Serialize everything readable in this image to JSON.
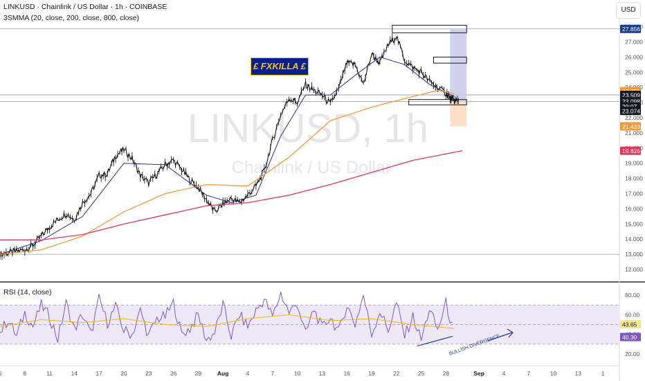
{
  "header": {
    "title": "LINKUSD · Chainlink / US Dollar · 1h · COINBASE",
    "indicator": "3SMMA (20, close, 200, close, 800, close)",
    "currency_button": "USD"
  },
  "watermark": {
    "line1": "LINKUSD, 1h",
    "line2": "Chainlink / US Dollar"
  },
  "badge": {
    "text": "£ FXKILLA £"
  },
  "rsi_panel": {
    "title": "RSI (14, close)"
  },
  "annotations": {
    "divergence": "BULLISH DIVERGENCE"
  },
  "colors": {
    "price": "#000000",
    "sma20": "#2a2e88",
    "sma200": "#f29a38",
    "sma800": "#e2365b",
    "rsi": "#7e57c2",
    "rsi_ma": "#f5b800",
    "rsi_band": "#ede7f6",
    "target_zone": "#c5cae9",
    "stop_zone": "#fcd9bd",
    "grid": "#d1d4dc"
  },
  "chart_data": [
    {
      "type": "candlestick",
      "symbol": "LINKUSD",
      "interval": "1h",
      "ylim": [
        11.5,
        28.3
      ],
      "yticks": [
        "12.000",
        "13.000",
        "14.000",
        "15.000",
        "16.000",
        "17.000",
        "18.000",
        "19.000",
        "20.000",
        "21.000",
        "22.000",
        "23.000",
        "24.000",
        "25.000",
        "26.000",
        "27.000",
        "28.000"
      ],
      "x_ticks": [
        "5",
        "8",
        "11",
        "14",
        "17",
        "20",
        "23",
        "26",
        "29",
        "Aug",
        "4",
        "7",
        "10",
        "13",
        "16",
        "19",
        "22",
        "25",
        "28",
        "Sep",
        "4",
        "7",
        "10",
        "13",
        "1"
      ],
      "x_tick_days": [
        5,
        8,
        11,
        14,
        17,
        20,
        23,
        26,
        29,
        32,
        35,
        38,
        41,
        44,
        47,
        50,
        53,
        56,
        59,
        63,
        66,
        69,
        72,
        75,
        78
      ],
      "x_range_days": [
        5,
        80
      ],
      "bold_x_ticks": [
        "Aug",
        "Sep"
      ],
      "price_series": {
        "day": [
          5,
          6,
          7,
          8,
          9,
          10,
          11,
          12,
          13,
          14,
          15,
          16,
          17,
          18,
          19,
          20,
          21,
          22,
          23,
          24,
          25,
          26,
          27,
          28,
          29,
          30,
          31,
          32,
          33,
          34,
          35,
          36,
          37,
          38,
          39,
          40,
          41,
          42,
          43,
          44,
          45,
          46,
          47,
          48,
          49,
          50,
          51,
          52,
          53,
          54,
          55,
          56,
          57,
          58,
          59,
          59.5,
          60,
          60.5
        ],
        "close": [
          13.0,
          13.1,
          13.2,
          13.3,
          13.6,
          14.2,
          14.8,
          15.3,
          15.7,
          15.3,
          16.4,
          17.0,
          18.2,
          18.3,
          19.5,
          19.9,
          19.3,
          18.2,
          17.7,
          18.3,
          18.9,
          19.2,
          18.6,
          17.9,
          17.4,
          16.6,
          15.8,
          16.3,
          16.7,
          16.4,
          16.9,
          17.5,
          18.5,
          20.5,
          22.2,
          23.3,
          23.0,
          24.2,
          23.8,
          23.5,
          22.9,
          23.9,
          25.6,
          25.5,
          24.2,
          26.2,
          25.6,
          26.8,
          27.4,
          25.8,
          25.3,
          25.0,
          24.4,
          24.0,
          23.6,
          23.3,
          23.1,
          23.1
        ]
      },
      "moving_averages": [
        {
          "name": "SMA 20",
          "day": [
            5,
            10,
            15,
            20,
            25,
            30,
            33,
            36,
            39,
            42,
            45,
            48,
            51,
            54,
            57,
            60
          ],
          "values": [
            13.0,
            13.9,
            15.5,
            19.0,
            18.9,
            16.9,
            16.4,
            16.9,
            20.8,
            23.5,
            23.5,
            24.8,
            26.0,
            25.5,
            24.2,
            23.4
          ]
        },
        {
          "name": "SMA 200",
          "day": [
            5,
            10,
            15,
            20,
            25,
            30,
            35,
            40,
            45,
            50,
            55,
            58,
            60
          ],
          "values": [
            13.0,
            13.3,
            14.2,
            15.8,
            17.0,
            17.6,
            17.5,
            19.4,
            21.8,
            22.7,
            23.4,
            23.8,
            23.6
          ]
        },
        {
          "name": "SMA 800",
          "day": [
            0,
            5,
            10,
            15,
            20,
            25,
            30,
            35,
            40,
            45,
            50,
            55,
            61
          ],
          "values": [
            14.05,
            13.95,
            13.95,
            14.3,
            15.0,
            15.6,
            16.2,
            16.4,
            16.9,
            17.6,
            18.4,
            19.2,
            19.83
          ]
        }
      ],
      "horizontal_lines": [
        27.856,
        23.509,
        23.074,
        13.0
      ],
      "price_labels": [
        "27.856",
        "23.755",
        "23.509",
        "23.098",
        "29:07",
        "23.074",
        "21.433",
        "19.826"
      ],
      "position_tool": {
        "entry": 23.074,
        "target": 27.856,
        "stop": 21.433,
        "start_day": 59.5,
        "end_day": 61.5
      },
      "boxes": [
        {
          "from_day": 52.5,
          "to_day": 61.5,
          "low": 27.6,
          "high": 28.1
        },
        {
          "from_day": 57.5,
          "to_day": 61.5,
          "low": 25.6,
          "high": 26.0
        },
        {
          "from_day": 54.5,
          "to_day": 61.5,
          "low": 22.85,
          "high": 23.2
        }
      ]
    },
    {
      "type": "line",
      "title": "RSI (14, close)",
      "ylim": [
        10,
        90
      ],
      "yticks": [
        "20.00",
        "40.00",
        "60.00",
        "80.00"
      ],
      "band": [
        30,
        70
      ],
      "midline": 50,
      "values_labels": [
        "43.65",
        "40.30"
      ],
      "series": [
        {
          "name": "RSI",
          "day": [
            5,
            6,
            7,
            8,
            9,
            10,
            11,
            12,
            13,
            14,
            15,
            16,
            17,
            18,
            19,
            20,
            21,
            22,
            23,
            24,
            25,
            26,
            27,
            28,
            29,
            30,
            31,
            32,
            33,
            34,
            35,
            36,
            37,
            38,
            39,
            40,
            41,
            42,
            43,
            44,
            45,
            46,
            47,
            48,
            49,
            50,
            51,
            52,
            53,
            54,
            55,
            56,
            57,
            58,
            59,
            60
          ],
          "values": [
            42,
            55,
            38,
            62,
            48,
            70,
            58,
            35,
            72,
            45,
            60,
            40,
            76,
            52,
            68,
            44,
            40,
            64,
            38,
            56,
            58,
            72,
            40,
            46,
            60,
            34,
            42,
            70,
            38,
            60,
            48,
            64,
            76,
            58,
            82,
            62,
            72,
            40,
            66,
            46,
            58,
            42,
            70,
            50,
            80,
            40,
            64,
            44,
            72,
            38,
            58,
            34,
            66,
            44,
            72,
            40
          ]
        },
        {
          "name": "RSI MA",
          "day": [
            5,
            10,
            15,
            20,
            25,
            30,
            35,
            40,
            45,
            50,
            55,
            60
          ],
          "values": [
            48,
            55,
            52,
            56,
            50,
            48,
            56,
            60,
            54,
            56,
            50,
            46
          ]
        }
      ],
      "divergence_line": {
        "from_day": 55.5,
        "from_value": 28,
        "to_day": 59.8,
        "to_value": 38
      }
    }
  ]
}
